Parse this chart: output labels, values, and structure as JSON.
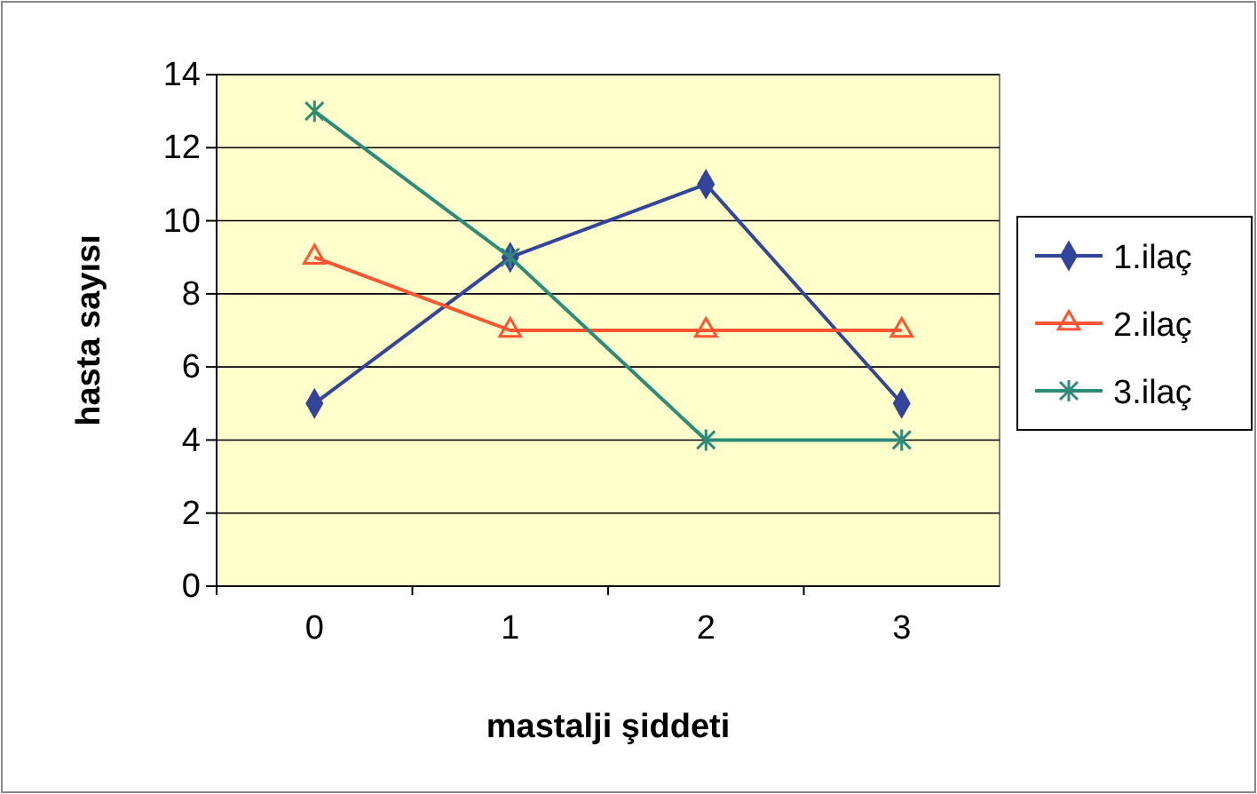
{
  "chart_data": {
    "type": "line",
    "xlabel": "mastalji şiddeti",
    "ylabel": "hasta sayısı",
    "categories": [
      "0",
      "1",
      "2",
      "3"
    ],
    "series": [
      {
        "name": "1.ilaç",
        "color": "#33449a",
        "marker": "diamond",
        "values": [
          5,
          9,
          11,
          5
        ]
      },
      {
        "name": "2.ilaç",
        "color": "#ff5533",
        "marker": "triangle",
        "values": [
          9,
          7,
          7,
          7
        ]
      },
      {
        "name": "3.ilaç",
        "color": "#2e8b7a",
        "marker": "cross",
        "values": [
          13,
          9,
          4,
          4
        ]
      }
    ],
    "ylim": [
      0,
      14
    ],
    "yticks": [
      0,
      2,
      4,
      6,
      8,
      10,
      12,
      14
    ],
    "grid": "y",
    "legend": "right",
    "line_style": "solid"
  }
}
